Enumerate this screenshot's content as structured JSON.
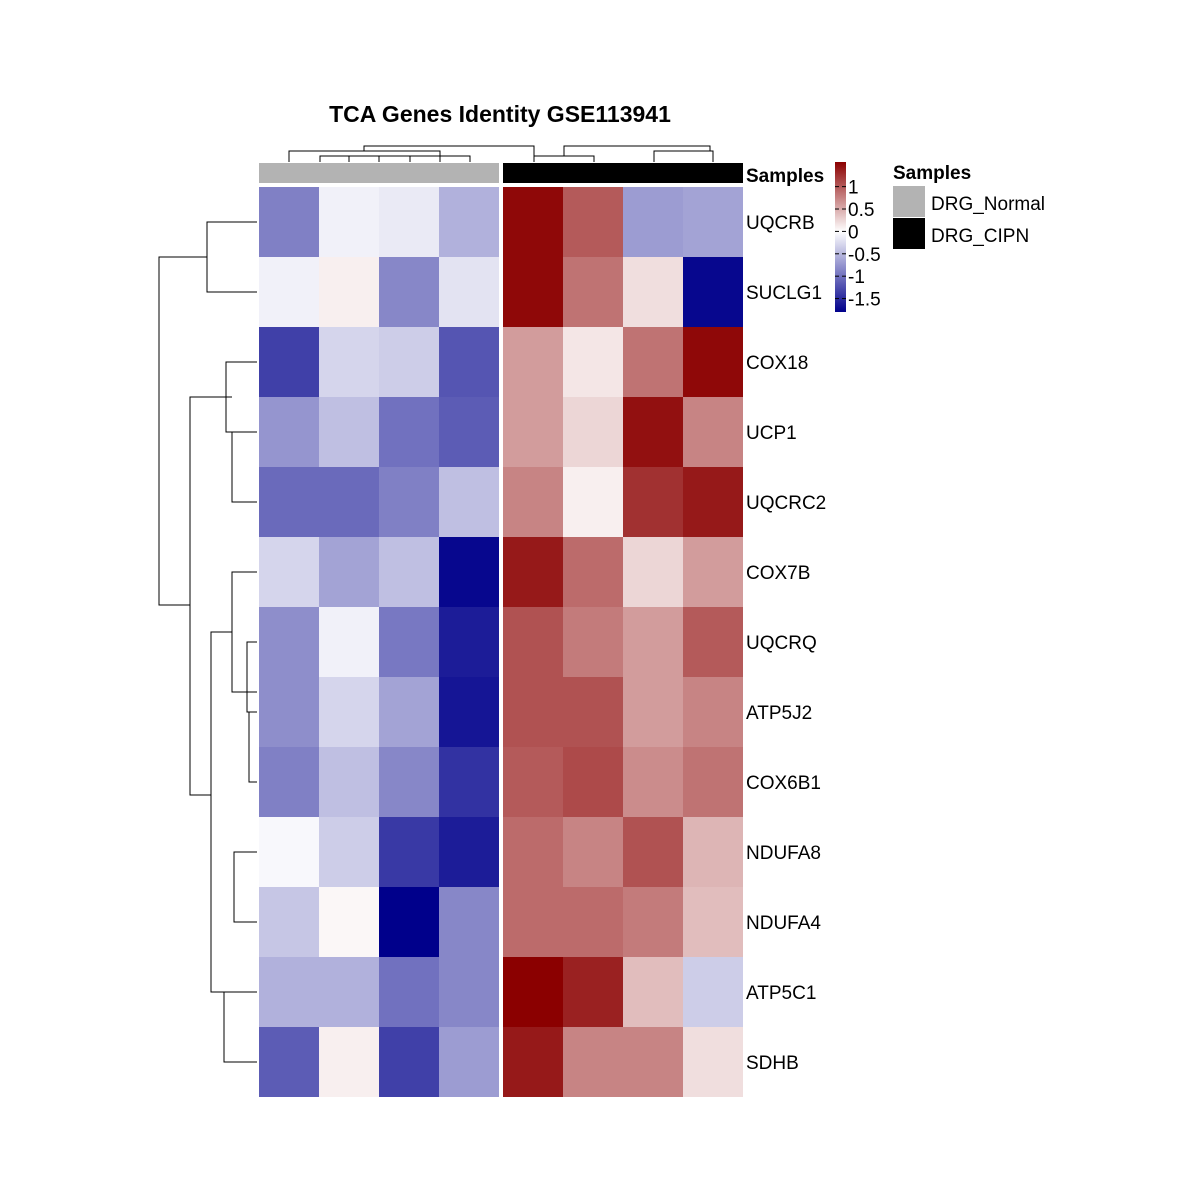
{
  "chart_data": {
    "type": "heatmap",
    "title": "TCA Genes Identity GSE113941",
    "rows": [
      "UQCRB",
      "SUCLG1",
      "COX18",
      "UCP1",
      "UQCRC2",
      "COX7B",
      "UQCRQ",
      "ATP5J2",
      "COX6B1",
      "NDUFA8",
      "NDUFA4",
      "ATP5C1",
      "SDHB"
    ],
    "column_groups": [
      "DRG_Normal",
      "DRG_Normal",
      "DRG_Normal",
      "DRG_Normal",
      "DRG_CIPN",
      "DRG_CIPN",
      "DRG_CIPN",
      "DRG_CIPN"
    ],
    "values": [
      [
        -0.9,
        -0.1,
        -0.15,
        -0.55,
        1.5,
        1.0,
        -0.7,
        -0.65
      ],
      [
        -0.1,
        0.1,
        -0.85,
        -0.2,
        1.5,
        0.85,
        0.2,
        -1.75
      ],
      [
        -1.35,
        -0.3,
        -0.35,
        -1.2,
        0.6,
        0.15,
        0.85,
        1.5
      ],
      [
        -0.75,
        -0.45,
        -1.0,
        -1.15,
        0.6,
        0.25,
        1.45,
        0.75
      ],
      [
        -1.05,
        -1.05,
        -0.9,
        -0.45,
        0.75,
        0.1,
        1.25,
        1.4
      ],
      [
        -0.3,
        -0.65,
        -0.45,
        -1.75,
        1.4,
        0.9,
        0.25,
        0.6
      ],
      [
        -0.8,
        -0.1,
        -0.95,
        -1.6,
        1.05,
        0.8,
        0.6,
        1.0
      ],
      [
        -0.8,
        -0.3,
        -0.65,
        -1.65,
        1.05,
        1.05,
        0.6,
        0.75
      ],
      [
        -0.9,
        -0.45,
        -0.85,
        -1.45,
        1.0,
        1.1,
        0.7,
        0.85
      ],
      [
        -0.05,
        -0.35,
        -1.4,
        -1.6,
        0.9,
        0.75,
        1.05,
        0.45
      ],
      [
        -0.4,
        0.05,
        -1.8,
        -0.85,
        0.9,
        0.9,
        0.8,
        0.4
      ],
      [
        -0.55,
        -0.55,
        -1.0,
        -0.85,
        1.55,
        1.35,
        0.4,
        -0.35
      ],
      [
        -1.15,
        0.1,
        -1.35,
        -0.7,
        1.4,
        0.75,
        0.75,
        0.2
      ]
    ],
    "color_scale": {
      "low": "#00008b",
      "mid": "#ffffff",
      "high": "#8b0000",
      "min": -1.8,
      "max": 1.55
    },
    "colorbar_ticks": [
      1,
      0.5,
      0,
      -0.5,
      -1,
      -1.5
    ],
    "annotation_label": "Samples",
    "legend": {
      "title": "Samples",
      "entries": [
        {
          "name": "DRG_Normal",
          "color": "#b3b3b3"
        },
        {
          "name": "DRG_CIPN",
          "color": "#000000"
        }
      ]
    },
    "grid": false
  }
}
